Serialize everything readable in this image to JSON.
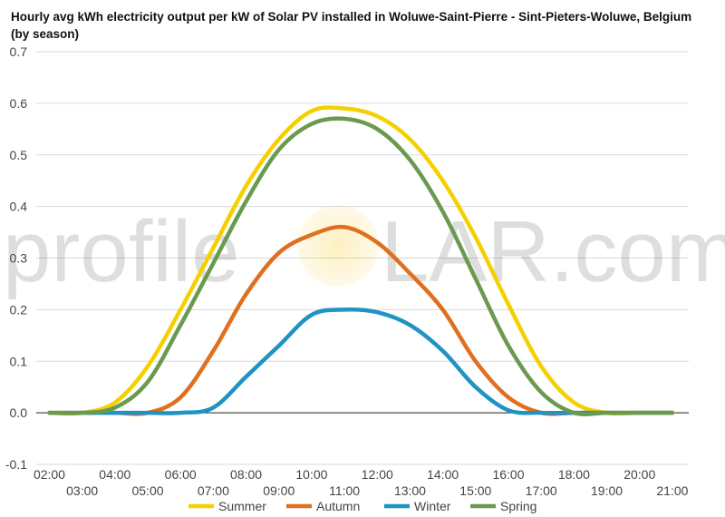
{
  "watermark": {
    "text_left": "profile",
    "text_right": "LAR.com",
    "sun_color": "#f6c200"
  },
  "chart_data": {
    "type": "line",
    "title": "Hourly avg kWh electricity output per kW of Solar PV installed in Woluwe-Saint-Pierre - Sint-Pieters-Woluwe, Belgium (by season)",
    "xlabel": "",
    "ylabel": "",
    "ylim": [
      -0.1,
      0.7
    ],
    "xlim": [
      1.6,
      21.5
    ],
    "yticks": [
      "0.7",
      "0.6",
      "0.5",
      "0.4",
      "0.3",
      "0.2",
      "0.1",
      "0.0",
      "-0.1"
    ],
    "ytick_values": [
      0.7,
      0.6,
      0.5,
      0.4,
      0.3,
      0.2,
      0.1,
      0.0,
      -0.1
    ],
    "xticks_top": [
      "02:00",
      "04:00",
      "06:00",
      "08:00",
      "10:00",
      "12:00",
      "14:00",
      "16:00",
      "18:00",
      "20:00"
    ],
    "xticks_top_values": [
      2,
      4,
      6,
      8,
      10,
      12,
      14,
      16,
      18,
      20
    ],
    "xticks_bottom": [
      "03:00",
      "05:00",
      "07:00",
      "09:00",
      "11:00",
      "13:00",
      "15:00",
      "17:00",
      "19:00",
      "21:00"
    ],
    "xticks_bottom_values": [
      3,
      5,
      7,
      9,
      11,
      13,
      15,
      17,
      19,
      21
    ],
    "grid": true,
    "legend_position": "bottom",
    "x": [
      2,
      3,
      4,
      5,
      6,
      7,
      8,
      9,
      10,
      11,
      12,
      13,
      14,
      15,
      16,
      17,
      18,
      19,
      20,
      21
    ],
    "series": [
      {
        "name": "Summer",
        "color": "#f5d000",
        "values": [
          0,
          0,
          0.02,
          0.09,
          0.2,
          0.32,
          0.44,
          0.53,
          0.585,
          0.59,
          0.575,
          0.53,
          0.45,
          0.34,
          0.21,
          0.09,
          0.02,
          0,
          0,
          0
        ]
      },
      {
        "name": "Autumn",
        "color": "#e07020",
        "values": [
          0,
          0,
          0,
          0,
          0.03,
          0.12,
          0.23,
          0.31,
          0.345,
          0.36,
          0.33,
          0.27,
          0.2,
          0.1,
          0.03,
          0,
          0,
          0,
          0,
          0
        ]
      },
      {
        "name": "Winter",
        "color": "#1f93c4",
        "values": [
          0,
          0,
          0,
          0,
          0,
          0.01,
          0.07,
          0.13,
          0.19,
          0.2,
          0.195,
          0.17,
          0.12,
          0.05,
          0.005,
          0,
          0,
          0,
          0,
          0
        ]
      },
      {
        "name": "Spring",
        "color": "#6a9a50",
        "values": [
          0,
          0,
          0.01,
          0.06,
          0.17,
          0.29,
          0.41,
          0.51,
          0.56,
          0.57,
          0.55,
          0.49,
          0.39,
          0.26,
          0.13,
          0.04,
          0,
          0,
          0,
          0
        ]
      }
    ]
  }
}
